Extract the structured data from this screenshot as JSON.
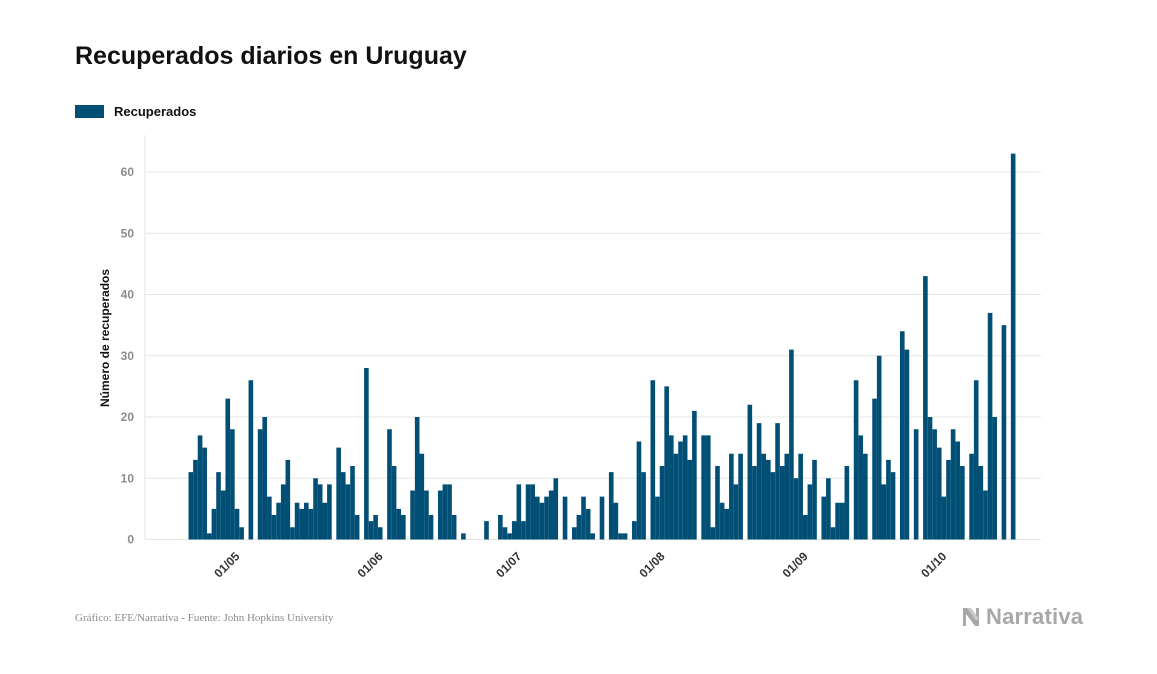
{
  "title": "Recuperados diarios en Uruguay",
  "colors": {
    "bar": "#024f75",
    "grid": "#e6e6e6",
    "tick": "#8c8c8c",
    "text": "#111111",
    "muted": "#a8a8a8"
  },
  "footer": {
    "source": "Gráfico: EFE/Narrativa - Fuente: John Hopkins University"
  },
  "brand": {
    "name": "Narrativa",
    "icon": "narrativa-n-icon"
  },
  "chart_data": {
    "type": "bar",
    "ylabel": "Número de recuperados",
    "ylim": [
      0,
      66
    ],
    "yticks": [
      0,
      10,
      20,
      30,
      40,
      50,
      60
    ],
    "xticks": [
      {
        "label": "01/05",
        "index": 9
      },
      {
        "label": "01/06",
        "index": 40
      },
      {
        "label": "01/07",
        "index": 70
      },
      {
        "label": "01/08",
        "index": 101
      },
      {
        "label": "01/09",
        "index": 132
      },
      {
        "label": "01/10",
        "index": 162
      }
    ],
    "series": [
      {
        "name": "Recuperados",
        "start_date": "22/04",
        "values": [
          11,
          13,
          17,
          15,
          1,
          5,
          11,
          8,
          23,
          18,
          5,
          2,
          0,
          26,
          0,
          18,
          20,
          7,
          4,
          6,
          9,
          13,
          2,
          6,
          5,
          6,
          5,
          10,
          9,
          6,
          9,
          0,
          15,
          11,
          9,
          12,
          4,
          0,
          28,
          3,
          4,
          2,
          0,
          18,
          12,
          5,
          4,
          0,
          8,
          20,
          14,
          8,
          4,
          0,
          8,
          9,
          9,
          4,
          0,
          1,
          0,
          0,
          0,
          0,
          3,
          0,
          0,
          4,
          2,
          1,
          3,
          9,
          3,
          9,
          9,
          7,
          6,
          7,
          8,
          10,
          0,
          7,
          0,
          2,
          4,
          7,
          5,
          1,
          0,
          7,
          0,
          11,
          6,
          1,
          1,
          0,
          3,
          16,
          11,
          0,
          26,
          7,
          12,
          25,
          17,
          14,
          16,
          17,
          13,
          21,
          0,
          17,
          17,
          2,
          12,
          6,
          5,
          14,
          9,
          14,
          0,
          22,
          12,
          19,
          14,
          13,
          11,
          19,
          12,
          14,
          31,
          10,
          14,
          4,
          9,
          13,
          0,
          7,
          10,
          2,
          6,
          6,
          12,
          0,
          26,
          17,
          14,
          0,
          23,
          30,
          9,
          13,
          11,
          0,
          34,
          31,
          0,
          18,
          0,
          43,
          20,
          18,
          15,
          7,
          13,
          18,
          16,
          12,
          0,
          14,
          26,
          12,
          8,
          37,
          20,
          0,
          35,
          0,
          63
        ]
      }
    ]
  }
}
